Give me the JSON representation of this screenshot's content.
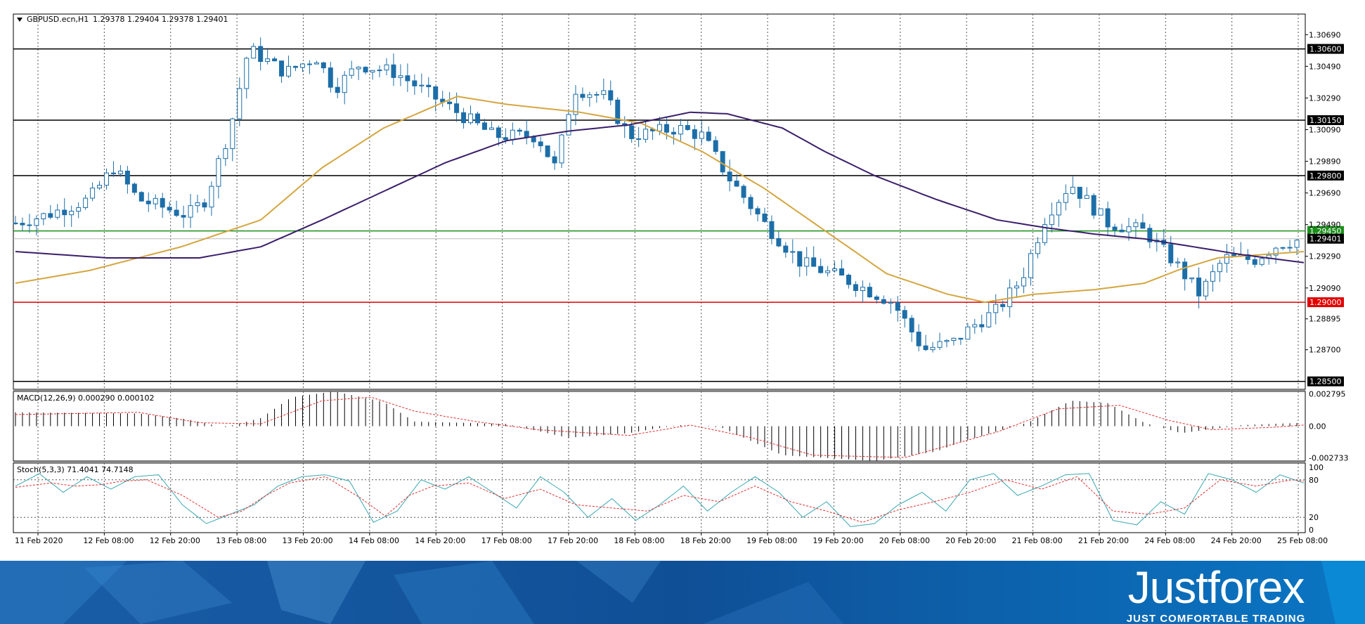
{
  "chart_data": [
    {
      "type": "candlestick",
      "header": {
        "symbol": "GBPUSD.ecn,H1",
        "ohlc": "1.29378 1.29404 1.29378 1.29401"
      },
      "ylim": [
        1.2845,
        1.3082
      ],
      "y_ticks": [
        "1.30690",
        "1.30490",
        "1.30290",
        "1.30090",
        "1.29890",
        "1.29690",
        "1.29490",
        "1.29290",
        "1.29090",
        "1.28895",
        "1.28700"
      ],
      "price_levels": [
        {
          "label": "1.30600",
          "value": 1.306,
          "color": "#000000",
          "line": true
        },
        {
          "label": "1.30150",
          "value": 1.3015,
          "color": "#000000",
          "line": true
        },
        {
          "label": "1.29800",
          "value": 1.298,
          "color": "#000000",
          "line": true
        },
        {
          "label": "1.29450",
          "value": 1.2945,
          "color": "#1a8f1a",
          "line": true
        },
        {
          "label": "1.29401",
          "value": 1.29401,
          "color": "#000000",
          "line": false
        },
        {
          "label": "1.29000",
          "value": 1.29,
          "color": "#e00000",
          "line": true
        },
        {
          "label": "1.28500",
          "value": 1.285,
          "color": "#000000",
          "line": true
        }
      ],
      "x_ticks": [
        "11 Feb 2020",
        "12 Feb 08:00",
        "12 Feb 20:00",
        "13 Feb 08:00",
        "13 Feb 20:00",
        "14 Feb 08:00",
        "14 Feb 20:00",
        "17 Feb 08:00",
        "17 Feb 20:00",
        "18 Feb 08:00",
        "18 Feb 20:00",
        "19 Feb 08:00",
        "19 Feb 20:00",
        "20 Feb 08:00",
        "20 Feb 20:00",
        "21 Feb 08:00",
        "21 Feb 20:00",
        "24 Feb 08:00",
        "24 Feb 20:00",
        "25 Feb 08:00"
      ],
      "bar_count": 184,
      "price_path": [
        [
          0,
          1.295
        ],
        [
          5,
          1.2955
        ],
        [
          12,
          1.2965
        ],
        [
          16,
          1.2985
        ],
        [
          20,
          1.2965
        ],
        [
          28,
          1.2955
        ],
        [
          31,
          1.2965
        ],
        [
          35,
          1.301
        ],
        [
          38,
          1.306
        ],
        [
          44,
          1.3045
        ],
        [
          49,
          1.3055
        ],
        [
          52,
          1.3035
        ],
        [
          56,
          1.305
        ],
        [
          62,
          1.3045
        ],
        [
          72,
          1.302
        ],
        [
          78,
          1.3005
        ],
        [
          85,
          1.3005
        ],
        [
          88,
          1.2985
        ],
        [
          91,
          1.3035
        ],
        [
          96,
          1.303
        ],
        [
          100,
          1.3005
        ],
        [
          108,
          1.301
        ],
        [
          112,
          1.3005
        ],
        [
          116,
          1.298
        ],
        [
          122,
          1.295
        ],
        [
          128,
          1.2925
        ],
        [
          135,
          1.2915
        ],
        [
          143,
          1.29
        ],
        [
          148,
          1.287
        ],
        [
          153,
          1.2875
        ],
        [
          156,
          1.2885
        ],
        [
          160,
          1.2895
        ],
        [
          164,
          1.2915
        ],
        [
          168,
          1.2955
        ],
        [
          172,
          1.2975
        ],
        [
          178,
          1.295
        ],
        [
          184,
          1.2945
        ],
        [
          189,
          1.2925
        ],
        [
          193,
          1.2905
        ],
        [
          197,
          1.2928
        ],
        [
          202,
          1.2927
        ],
        [
          206,
          1.2937
        ],
        [
          210,
          1.294
        ]
      ],
      "indicators": [
        {
          "name": "ma-fast",
          "color": "#d4a640",
          "path": [
            [
              0,
              1.2912
            ],
            [
              12,
              1.292
            ],
            [
              27,
              1.2935
            ],
            [
              40,
              1.2952
            ],
            [
              50,
              1.2985
            ],
            [
              60,
              1.301
            ],
            [
              72,
              1.303
            ],
            [
              80,
              1.3025
            ],
            [
              92,
              1.302
            ],
            [
              102,
              1.3013
            ],
            [
              112,
              1.2995
            ],
            [
              122,
              1.2972
            ],
            [
              132,
              1.2945
            ],
            [
              142,
              1.2918
            ],
            [
              152,
              1.2905
            ],
            [
              158,
              1.29
            ],
            [
              166,
              1.2905
            ],
            [
              176,
              1.2908
            ],
            [
              184,
              1.2912
            ],
            [
              190,
              1.2921
            ],
            [
              196,
              1.2928
            ],
            [
              210,
              1.2932
            ]
          ]
        },
        {
          "name": "ma-slow",
          "color": "#3a1f6a",
          "path": [
            [
              0,
              1.2932
            ],
            [
              15,
              1.2928
            ],
            [
              30,
              1.2928
            ],
            [
              40,
              1.2935
            ],
            [
              50,
              1.2952
            ],
            [
              60,
              1.297
            ],
            [
              70,
              1.2988
            ],
            [
              80,
              1.3002
            ],
            [
              90,
              1.3008
            ],
            [
              100,
              1.3012
            ],
            [
              110,
              1.302
            ],
            [
              116,
              1.3019
            ],
            [
              125,
              1.301
            ],
            [
              132,
              1.2995
            ],
            [
              140,
              1.298
            ],
            [
              150,
              1.2965
            ],
            [
              160,
              1.2952
            ],
            [
              168,
              1.2947
            ],
            [
              176,
              1.2943
            ],
            [
              184,
              1.294
            ],
            [
              192,
              1.2935
            ],
            [
              200,
              1.293
            ],
            [
              210,
              1.2925
            ]
          ]
        }
      ]
    },
    {
      "type": "bar",
      "label": "MACD(12,26,9) 0.000290 0.000102",
      "ylim": [
        -0.003,
        0.003
      ],
      "y_ticks": [
        "0.002795",
        "0.00",
        "-0.002733"
      ],
      "hist_path": [
        [
          0,
          0.0012
        ],
        [
          20,
          0.0011
        ],
        [
          28,
          0.0006
        ],
        [
          34,
          -0.0001
        ],
        [
          40,
          0.0007
        ],
        [
          45,
          0.0025
        ],
        [
          52,
          0.003
        ],
        [
          60,
          0.0021
        ],
        [
          65,
          0.0004
        ],
        [
          80,
          0.0002
        ],
        [
          90,
          -0.001
        ],
        [
          100,
          -0.0006
        ],
        [
          108,
          0.0001
        ],
        [
          115,
          -0.0001
        ],
        [
          125,
          -0.0025
        ],
        [
          140,
          -0.003
        ],
        [
          150,
          -0.0022
        ],
        [
          155,
          -0.0012
        ],
        [
          165,
          0.0003
        ],
        [
          172,
          0.0022
        ],
        [
          178,
          0.002
        ],
        [
          184,
          0.0003
        ],
        [
          190,
          -0.0006
        ],
        [
          200,
          0.0001
        ],
        [
          210,
          0.0003
        ]
      ],
      "signal_path": [
        [
          0,
          0.001
        ],
        [
          20,
          0.0012
        ],
        [
          30,
          0.0003
        ],
        [
          40,
          0.0002
        ],
        [
          50,
          0.0022
        ],
        [
          58,
          0.0025
        ],
        [
          65,
          0.0013
        ],
        [
          75,
          0.0004
        ],
        [
          85,
          -0.0003
        ],
        [
          100,
          -0.0008
        ],
        [
          110,
          0.0001
        ],
        [
          120,
          -0.001
        ],
        [
          130,
          -0.0025
        ],
        [
          145,
          -0.0027
        ],
        [
          160,
          -0.0005
        ],
        [
          170,
          0.0015
        ],
        [
          180,
          0.0018
        ],
        [
          188,
          0.0005
        ],
        [
          195,
          -0.0003
        ],
        [
          205,
          -0.0001
        ],
        [
          210,
          0.0001
        ]
      ]
    },
    {
      "type": "line",
      "label": "Stoch(5,3,3) 71.4041 74.7148",
      "ylim": [
        0,
        100
      ],
      "y_ticks": [
        "100",
        "80",
        "20",
        "0"
      ],
      "main_path": [
        [
          0,
          70
        ],
        [
          4,
          90
        ],
        [
          8,
          60
        ],
        [
          12,
          85
        ],
        [
          16,
          65
        ],
        [
          20,
          85
        ],
        [
          24,
          88
        ],
        [
          28,
          40
        ],
        [
          32,
          10
        ],
        [
          36,
          25
        ],
        [
          40,
          40
        ],
        [
          44,
          70
        ],
        [
          48,
          85
        ],
        [
          52,
          88
        ],
        [
          56,
          78
        ],
        [
          60,
          12
        ],
        [
          64,
          30
        ],
        [
          68,
          80
        ],
        [
          72,
          65
        ],
        [
          76,
          85
        ],
        [
          80,
          60
        ],
        [
          84,
          35
        ],
        [
          88,
          85
        ],
        [
          92,
          60
        ],
        [
          96,
          20
        ],
        [
          100,
          50
        ],
        [
          104,
          15
        ],
        [
          108,
          40
        ],
        [
          112,
          70
        ],
        [
          116,
          30
        ],
        [
          120,
          60
        ],
        [
          124,
          85
        ],
        [
          128,
          60
        ],
        [
          132,
          20
        ],
        [
          136,
          45
        ],
        [
          140,
          5
        ],
        [
          144,
          10
        ],
        [
          148,
          40
        ],
        [
          152,
          60
        ],
        [
          156,
          30
        ],
        [
          160,
          80
        ],
        [
          164,
          90
        ],
        [
          168,
          55
        ],
        [
          172,
          70
        ],
        [
          176,
          88
        ],
        [
          180,
          90
        ],
        [
          184,
          15
        ],
        [
          188,
          8
        ],
        [
          192,
          45
        ],
        [
          196,
          25
        ],
        [
          200,
          90
        ],
        [
          204,
          80
        ],
        [
          208,
          60
        ],
        [
          212,
          88
        ],
        [
          216,
          75
        ]
      ],
      "signal_path": [
        [
          0,
          68
        ],
        [
          6,
          75
        ],
        [
          10,
          70
        ],
        [
          14,
          72
        ],
        [
          18,
          78
        ],
        [
          22,
          80
        ],
        [
          28,
          55
        ],
        [
          34,
          20
        ],
        [
          38,
          30
        ],
        [
          42,
          55
        ],
        [
          46,
          75
        ],
        [
          52,
          85
        ],
        [
          58,
          50
        ],
        [
          62,
          22
        ],
        [
          66,
          55
        ],
        [
          70,
          70
        ],
        [
          76,
          75
        ],
        [
          82,
          50
        ],
        [
          88,
          65
        ],
        [
          94,
          40
        ],
        [
          100,
          35
        ],
        [
          106,
          30
        ],
        [
          112,
          55
        ],
        [
          118,
          45
        ],
        [
          124,
          70
        ],
        [
          130,
          45
        ],
        [
          136,
          30
        ],
        [
          142,
          12
        ],
        [
          148,
          32
        ],
        [
          154,
          45
        ],
        [
          160,
          60
        ],
        [
          166,
          80
        ],
        [
          172,
          65
        ],
        [
          178,
          85
        ],
        [
          184,
          30
        ],
        [
          190,
          25
        ],
        [
          196,
          35
        ],
        [
          202,
          80
        ],
        [
          208,
          70
        ],
        [
          214,
          80
        ],
        [
          216,
          78
        ]
      ]
    }
  ],
  "banner": {
    "brand": "Justforex",
    "tagline": "JUST COMFORTABLE TRADING"
  }
}
